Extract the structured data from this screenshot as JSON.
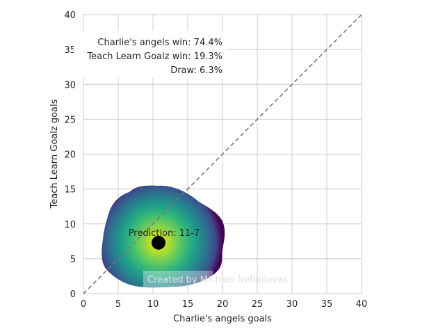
{
  "chart_data": {
    "type": "scatter",
    "title": "",
    "xlabel": "Charlie's angels goals",
    "ylabel": "Teach Learn Goalz goals",
    "xlim": [
      0,
      40
    ],
    "ylim": [
      0,
      40
    ],
    "xticks": [
      "0",
      "5",
      "10",
      "15",
      "20",
      "25",
      "30",
      "35",
      "40"
    ],
    "yticks": [
      "0",
      "5",
      "10",
      "15",
      "20",
      "25",
      "30",
      "35",
      "40"
    ],
    "grid": true,
    "diagonal_line": {
      "from": [
        0,
        0
      ],
      "to": [
        40,
        40
      ],
      "style": "dashed",
      "color": "#777777"
    },
    "density": {
      "colormap": "viridis",
      "center": [
        10.8,
        7.3
      ],
      "extent": {
        "x": [
          2.8,
          20.3
        ],
        "y": [
          0.8,
          15.4
        ]
      }
    },
    "prediction_point": {
      "x": 10.8,
      "y": 7.3,
      "color": "#000000"
    },
    "annotations": {
      "win_a": "Charlie's angels win: 74.4%",
      "win_b": "Teach Learn Goalz win: 19.3%",
      "draw": "Draw: 6.3%",
      "prediction": "Prediction: 11-7",
      "watermark": "Created by Michael Nefiodovas"
    }
  }
}
